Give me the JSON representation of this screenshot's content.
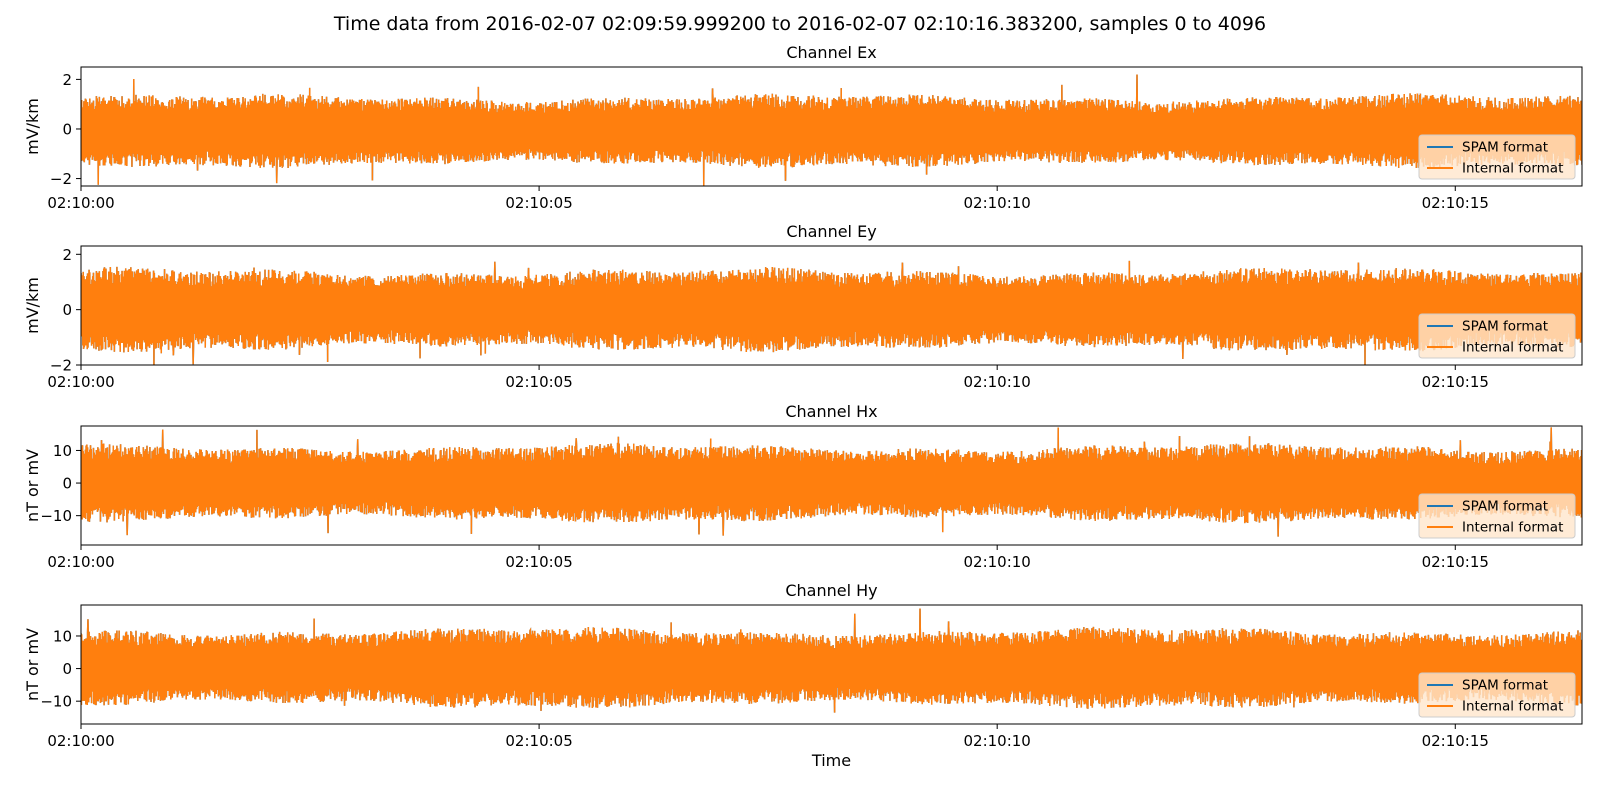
{
  "figure": {
    "suptitle": "Time data from 2016-02-07 02:09:59.999200 to 2016-02-07 02:10:16.383200, samples 0 to 4096"
  },
  "colors": {
    "spam": "#1f77b4",
    "internal": "#ff7f0e",
    "legend_bg": "#ffe6cc"
  },
  "chart_data": [
    {
      "type": "line",
      "title": "Channel Ex",
      "ylabel": "mV/km",
      "xlabel": "",
      "xlim": [
        "02:10:00",
        "02:10:16.3832"
      ],
      "ylim": [
        -2.3,
        2.5
      ],
      "yticks": [
        -2,
        0,
        2
      ],
      "ytick_labels": [
        "−2",
        "0",
        "2"
      ],
      "xticks": [
        "02:10:00",
        "02:10:05",
        "02:10:10",
        "02:10:15"
      ],
      "legend": {
        "location": "lower right",
        "entries": [
          "SPAM format",
          "Internal format"
        ]
      },
      "series": [
        {
          "name": "SPAM format",
          "samples": 4096,
          "band": [
            -1.3,
            1.15
          ],
          "peaks": [
            2.3,
            -2.1
          ]
        },
        {
          "name": "Internal format",
          "samples": 4096,
          "band": [
            -1.3,
            1.15
          ],
          "peaks": [
            2.3,
            -2.1
          ]
        }
      ]
    },
    {
      "type": "line",
      "title": "Channel Ey",
      "ylabel": "mV/km",
      "xlabel": "",
      "xlim": [
        "02:10:00",
        "02:10:16.3832"
      ],
      "ylim": [
        -2.0,
        2.3
      ],
      "yticks": [
        -2,
        0,
        2
      ],
      "ytick_labels": [
        "−2",
        "0",
        "2"
      ],
      "xticks": [
        "02:10:00",
        "02:10:05",
        "02:10:10",
        "02:10:15"
      ],
      "legend": {
        "location": "lower right",
        "entries": [
          "SPAM format",
          "Internal format"
        ]
      },
      "series": [
        {
          "name": "SPAM format",
          "samples": 4096,
          "band": [
            -1.25,
            1.25
          ],
          "peaks": [
            2.1,
            -1.8
          ]
        },
        {
          "name": "Internal format",
          "samples": 4096,
          "band": [
            -1.25,
            1.25
          ],
          "peaks": [
            2.1,
            -1.8
          ]
        }
      ]
    },
    {
      "type": "line",
      "title": "Channel Hx",
      "ylabel": "nT or mV",
      "xlabel": "",
      "xlim": [
        "02:10:00",
        "02:10:16.3832"
      ],
      "ylim": [
        -19,
        17.5
      ],
      "yticks": [
        -10,
        0,
        10
      ],
      "ytick_labels": [
        "−10",
        "0",
        "10"
      ],
      "xticks": [
        "02:10:00",
        "02:10:05",
        "02:10:10",
        "02:10:15"
      ],
      "legend": {
        "location": "lower right",
        "entries": [
          "SPAM format",
          "Internal format"
        ]
      },
      "series": [
        {
          "name": "SPAM format",
          "samples": 4096,
          "band": [
            -10,
            10
          ],
          "peaks": [
            16.5,
            -17.5
          ]
        },
        {
          "name": "Internal format",
          "samples": 4096,
          "band": [
            -10,
            10
          ],
          "peaks": [
            16.5,
            -17.5
          ]
        }
      ]
    },
    {
      "type": "line",
      "title": "Channel Hy",
      "ylabel": "nT or mV",
      "xlabel": "Time",
      "xlim": [
        "02:10:00",
        "02:10:16.3832"
      ],
      "ylim": [
        -17,
        19.5
      ],
      "yticks": [
        -10,
        0,
        10
      ],
      "ytick_labels": [
        "−10",
        "0",
        "10"
      ],
      "xticks": [
        "02:10:00",
        "02:10:05",
        "02:10:10",
        "02:10:15"
      ],
      "legend": {
        "location": "lower right",
        "entries": [
          "SPAM format",
          "Internal format"
        ]
      },
      "series": [
        {
          "name": "SPAM format",
          "samples": 4096,
          "band": [
            -10,
            10.5
          ],
          "peaks": [
            18.5,
            -15
          ]
        },
        {
          "name": "Internal format",
          "samples": 4096,
          "band": [
            -10,
            10.5
          ],
          "peaks": [
            18.5,
            -15
          ]
        }
      ]
    }
  ]
}
